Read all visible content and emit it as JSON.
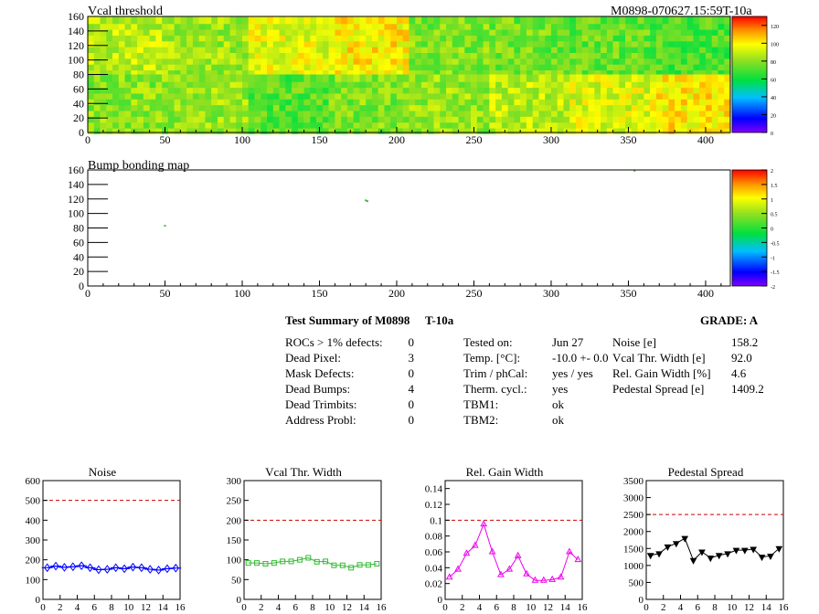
{
  "header": {
    "title_left": "Vcal threshold",
    "title_right": "M0898-070627.15:59T-10a"
  },
  "summary": {
    "title": "Test Summary of M0898",
    "subtitle": "T-10a",
    "grade_label": "GRADE:  A",
    "left_rows": [
      {
        "label": "ROCs > 1% defects:",
        "value": "0"
      },
      {
        "label": "Dead Pixel:",
        "value": "3"
      },
      {
        "label": "Mask Defects:",
        "value": "0"
      },
      {
        "label": "Dead Bumps:",
        "value": "4"
      },
      {
        "label": "Dead Trimbits:",
        "value": "0"
      },
      {
        "label": "Address Probl:",
        "value": "0"
      }
    ],
    "mid_rows": [
      {
        "label": "Tested on:",
        "value": "Jun 27"
      },
      {
        "label": "Temp. [°C]:",
        "value": "-10.0 +- 0.0"
      },
      {
        "label": "Trim / phCal:",
        "value": "yes / yes"
      },
      {
        "label": "Therm. cycl.:",
        "value": "yes"
      },
      {
        "label": "TBM1:",
        "value": "ok"
      },
      {
        "label": "TBM2:",
        "value": "ok"
      }
    ],
    "right_rows": [
      {
        "label": "Noise [e]",
        "value": "158.2"
      },
      {
        "label": "Vcal Thr. Width [e]",
        "value": "92.0"
      },
      {
        "label": "Rel. Gain Width [%]",
        "value": "4.6"
      },
      {
        "label": "Pedestal Spread [e]",
        "value": "1409.2"
      }
    ]
  },
  "chart_data": [
    {
      "type": "heatmap",
      "title": "Vcal threshold",
      "x_range": [
        0,
        416
      ],
      "y_range": [
        0,
        160
      ],
      "x_ticks": [
        "0",
        "50",
        "100",
        "150",
        "200",
        "250",
        "300",
        "350",
        "400"
      ],
      "y_ticks": [
        "0",
        "20",
        "40",
        "60",
        "80",
        "100",
        "120",
        "140",
        "160"
      ],
      "colorbar_ticks": [
        "0",
        "20",
        "40",
        "60",
        "80",
        "100",
        "120"
      ],
      "z_range": [
        0,
        130
      ],
      "roc_means_top": [
        88,
        83,
        95,
        100,
        78,
        76,
        74,
        70
      ],
      "roc_means_bottom": [
        100,
        93,
        88,
        82,
        78,
        72,
        82,
        80
      ]
    },
    {
      "type": "heatmap",
      "title": "Bump bonding map",
      "x_range": [
        0,
        416
      ],
      "y_range": [
        0,
        160
      ],
      "x_ticks": [
        "0",
        "50",
        "100",
        "150",
        "200",
        "250",
        "300",
        "350",
        "400"
      ],
      "y_ticks": [
        "0",
        "20",
        "40",
        "60",
        "80",
        "100",
        "120",
        "140",
        "160"
      ],
      "colorbar_ticks": [
        "-2",
        "-1.5",
        "-1",
        "-0.5",
        "0",
        "0.5",
        "1",
        "1.5",
        "2"
      ],
      "z_range": [
        -2,
        2
      ],
      "points": [
        {
          "x": 50,
          "y": 83
        },
        {
          "x": 180,
          "y": 118
        },
        {
          "x": 181,
          "y": 117
        },
        {
          "x": 354,
          "y": 159
        }
      ]
    },
    {
      "type": "line",
      "title": "Noise",
      "color": "#0000ff",
      "marker": "diamond",
      "x": [
        0,
        1,
        2,
        3,
        4,
        5,
        6,
        7,
        8,
        9,
        10,
        11,
        12,
        13,
        14,
        15
      ],
      "values": [
        160,
        168,
        162,
        165,
        170,
        160,
        150,
        152,
        160,
        155,
        163,
        160,
        152,
        148,
        155,
        158
      ],
      "ylim": [
        0,
        600
      ],
      "xlim": [
        0,
        16
      ],
      "y_ticks": [
        "0",
        "100",
        "200",
        "300",
        "400",
        "500",
        "600"
      ],
      "x_ticks": [
        "0",
        "2",
        "4",
        "6",
        "8",
        "10",
        "12",
        "14",
        "16"
      ],
      "cut": 500
    },
    {
      "type": "line",
      "title": "Vcal Thr. Width",
      "color": "#33bb33",
      "marker": "square",
      "x": [
        0,
        1,
        2,
        3,
        4,
        5,
        6,
        7,
        8,
        9,
        10,
        11,
        12,
        13,
        14,
        15
      ],
      "values": [
        92,
        92,
        90,
        92,
        96,
        96,
        100,
        105,
        95,
        96,
        86,
        86,
        80,
        87,
        87,
        90
      ],
      "ylim": [
        0,
        300
      ],
      "xlim": [
        0,
        16
      ],
      "y_ticks": [
        "0",
        "50",
        "100",
        "150",
        "200",
        "250",
        "300"
      ],
      "x_ticks": [
        "0",
        "2",
        "4",
        "6",
        "8",
        "10",
        "12",
        "14",
        "16"
      ],
      "cut": 200
    },
    {
      "type": "line",
      "title": "Rel. Gain Width",
      "color": "#ee00ee",
      "marker": "triangle",
      "x": [
        0,
        1,
        2,
        3,
        4,
        5,
        6,
        7,
        8,
        9,
        10,
        11,
        12,
        13,
        14,
        15
      ],
      "values": [
        0.028,
        0.038,
        0.058,
        0.068,
        0.095,
        0.06,
        0.031,
        0.038,
        0.055,
        0.032,
        0.024,
        0.024,
        0.025,
        0.028,
        0.06,
        0.05
      ],
      "ylim": [
        0,
        0.15
      ],
      "xlim": [
        0,
        16
      ],
      "y_ticks": [
        "0",
        "0.02",
        "0.04",
        "0.06",
        "0.08",
        "0.1",
        "0.12",
        "0.14"
      ],
      "x_ticks": [
        "0",
        "2",
        "4",
        "6",
        "8",
        "10",
        "12",
        "14",
        "16"
      ],
      "cut": 0.1
    },
    {
      "type": "line",
      "title": "Pedestal Spread",
      "color": "#000000",
      "marker": "triangle-down",
      "x": [
        0,
        1,
        2,
        3,
        4,
        5,
        6,
        7,
        8,
        9,
        10,
        11,
        12,
        13,
        14,
        15
      ],
      "values": [
        1300,
        1350,
        1550,
        1650,
        1800,
        1150,
        1400,
        1220,
        1300,
        1350,
        1450,
        1450,
        1480,
        1250,
        1280,
        1500
      ],
      "ylim": [
        0,
        3500
      ],
      "xlim": [
        0,
        16
      ],
      "y_ticks": [
        "0",
        "500",
        "1000",
        "1500",
        "2000",
        "2500",
        "3000",
        "3500"
      ],
      "x_ticks": [
        "0",
        "2",
        "4",
        "6",
        "8",
        "10",
        "12",
        "14",
        "16"
      ],
      "cut": 2500
    }
  ]
}
